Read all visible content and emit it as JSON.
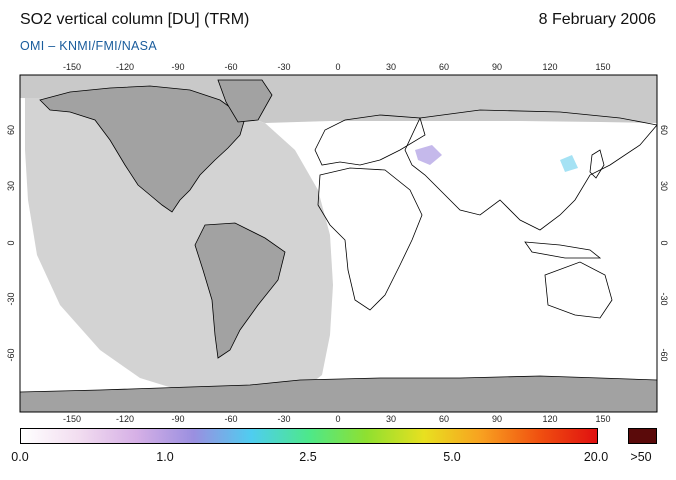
{
  "header": {
    "title": "SO2 vertical column [DU] (TRM)",
    "date": "8 February 2006",
    "credit": "OMI  –  KNMI/FMI/NASA"
  },
  "map": {
    "lon_ticks": [
      "-150",
      "-120",
      "-90",
      "-60",
      "-30",
      "0",
      "30",
      "60",
      "90",
      "120",
      "150"
    ],
    "lat_ticks_left": [
      "60",
      "30",
      "0",
      "-30",
      "-60"
    ],
    "lat_ticks_right": [
      "60",
      "30",
      "0",
      "-30",
      "-60"
    ],
    "colors": {
      "no_data": "#c9c9c9",
      "land_dark": "#a2a2a2",
      "night": "#d3d3d3",
      "ocean": "#ffffff",
      "coast": "#000000"
    }
  },
  "colorbar": {
    "labels": [
      "0.0",
      "1.0",
      "2.5",
      "5.0",
      "20.0"
    ],
    "overflow_label": ">50",
    "overflow_color": "#5a0a0a",
    "stops": [
      "#ffffff",
      "#f2ddf0",
      "#d6b0e6",
      "#9a8fe0",
      "#4fcdf0",
      "#4de88a",
      "#8fe030",
      "#e8e020",
      "#f8a020",
      "#f05010",
      "#e01010"
    ]
  }
}
